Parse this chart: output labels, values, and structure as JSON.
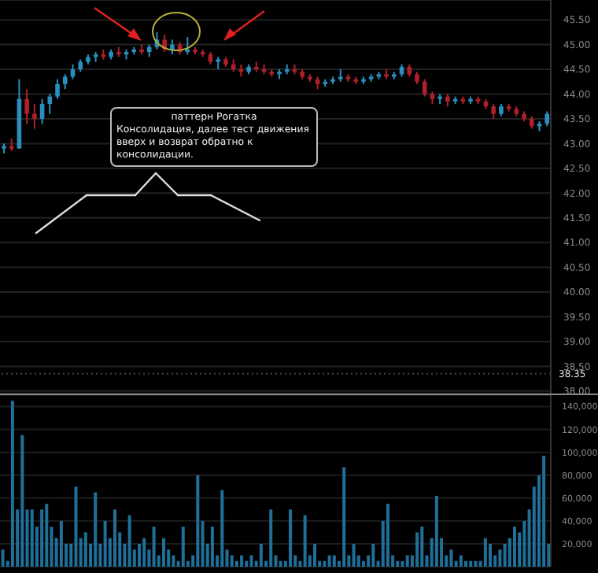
{
  "chart_data": [
    {
      "type": "candlestick",
      "categories": [
        null,
        null,
        null,
        null,
        null,
        null,
        null,
        null,
        null,
        null,
        null,
        null,
        null,
        null,
        null,
        null,
        null,
        null,
        null,
        null,
        null,
        null,
        null,
        null,
        null,
        null,
        null,
        null,
        null,
        null,
        null,
        null,
        null,
        null,
        null,
        null,
        null,
        null,
        null,
        null,
        null,
        null,
        null,
        null,
        null,
        null,
        null,
        null,
        null,
        null,
        null,
        null,
        null,
        null,
        null,
        null,
        null,
        null,
        null,
        null,
        null,
        null,
        null,
        null,
        null,
        null,
        null,
        null,
        null,
        null,
        null,
        null
      ],
      "ohlc": [
        [
          42.9,
          43.0,
          42.8,
          42.95
        ],
        [
          42.95,
          43.1,
          42.85,
          42.9
        ],
        [
          42.9,
          44.3,
          42.9,
          43.9
        ],
        [
          43.9,
          44.1,
          43.4,
          43.6
        ],
        [
          43.6,
          43.8,
          43.3,
          43.5
        ],
        [
          43.5,
          43.9,
          43.4,
          43.8
        ],
        [
          43.8,
          44.0,
          43.6,
          43.95
        ],
        [
          43.95,
          44.3,
          43.9,
          44.2
        ],
        [
          44.2,
          44.4,
          44.1,
          44.35
        ],
        [
          44.35,
          44.6,
          44.3,
          44.5
        ],
        [
          44.5,
          44.7,
          44.45,
          44.65
        ],
        [
          44.65,
          44.8,
          44.6,
          44.75
        ],
        [
          44.75,
          44.85,
          44.65,
          44.8
        ],
        [
          44.8,
          44.9,
          44.7,
          44.75
        ],
        [
          44.75,
          44.9,
          44.7,
          44.85
        ],
        [
          44.85,
          44.95,
          44.75,
          44.8
        ],
        [
          44.8,
          44.9,
          44.7,
          44.85
        ],
        [
          44.85,
          44.95,
          44.8,
          44.9
        ],
        [
          44.9,
          45.0,
          44.8,
          44.85
        ],
        [
          44.85,
          45.0,
          44.75,
          44.95
        ],
        [
          44.95,
          45.25,
          44.9,
          45.1
        ],
        [
          45.1,
          45.2,
          44.85,
          44.9
        ],
        [
          44.9,
          45.1,
          44.8,
          45.0
        ],
        [
          45.0,
          45.05,
          44.8,
          44.85
        ],
        [
          44.85,
          45.15,
          44.8,
          44.9
        ],
        [
          44.9,
          44.95,
          44.8,
          44.85
        ],
        [
          44.85,
          44.9,
          44.75,
          44.8
        ],
        [
          44.8,
          44.85,
          44.6,
          44.65
        ],
        [
          44.65,
          44.75,
          44.5,
          44.7
        ],
        [
          44.7,
          44.75,
          44.55,
          44.6
        ],
        [
          44.6,
          44.7,
          44.45,
          44.5
        ],
        [
          44.5,
          44.6,
          44.35,
          44.45
        ],
        [
          44.45,
          44.6,
          44.4,
          44.55
        ],
        [
          44.55,
          44.65,
          44.45,
          44.5
        ],
        [
          44.5,
          44.6,
          44.4,
          44.45
        ],
        [
          44.45,
          44.5,
          44.35,
          44.4
        ],
        [
          44.4,
          44.5,
          44.3,
          44.45
        ],
        [
          44.45,
          44.6,
          44.4,
          44.5
        ],
        [
          44.5,
          44.6,
          44.4,
          44.45
        ],
        [
          44.45,
          44.5,
          44.3,
          44.35
        ],
        [
          44.35,
          44.4,
          44.25,
          44.3
        ],
        [
          44.3,
          44.35,
          44.1,
          44.2
        ],
        [
          44.2,
          44.3,
          44.15,
          44.25
        ],
        [
          44.25,
          44.35,
          44.2,
          44.3
        ],
        [
          44.3,
          44.5,
          44.25,
          44.35
        ],
        [
          44.35,
          44.4,
          44.25,
          44.3
        ],
        [
          44.3,
          44.35,
          44.2,
          44.25
        ],
        [
          44.25,
          44.35,
          44.2,
          44.3
        ],
        [
          44.3,
          44.4,
          44.25,
          44.35
        ],
        [
          44.35,
          44.45,
          44.3,
          44.4
        ],
        [
          44.4,
          44.5,
          44.3,
          44.35
        ],
        [
          44.35,
          44.45,
          44.3,
          44.4
        ],
        [
          44.4,
          44.6,
          44.35,
          44.55
        ],
        [
          44.55,
          44.6,
          44.35,
          44.4
        ],
        [
          44.4,
          44.45,
          44.2,
          44.25
        ],
        [
          44.25,
          44.3,
          43.95,
          44.0
        ],
        [
          44.0,
          44.05,
          43.8,
          43.9
        ],
        [
          43.9,
          44.0,
          43.8,
          43.95
        ],
        [
          43.95,
          44.0,
          43.75,
          43.85
        ],
        [
          43.85,
          43.95,
          43.8,
          43.9
        ],
        [
          43.9,
          43.95,
          43.8,
          43.85
        ],
        [
          43.85,
          43.95,
          43.8,
          43.9
        ],
        [
          43.9,
          43.95,
          43.8,
          43.85
        ],
        [
          43.85,
          43.9,
          43.7,
          43.75
        ],
        [
          43.75,
          43.8,
          43.5,
          43.6
        ],
        [
          43.6,
          43.8,
          43.55,
          43.75
        ],
        [
          43.75,
          43.8,
          43.65,
          43.7
        ],
        [
          43.7,
          43.75,
          43.55,
          43.6
        ],
        [
          43.6,
          43.65,
          43.45,
          43.5
        ],
        [
          43.5,
          43.55,
          43.3,
          43.35
        ],
        [
          43.35,
          43.45,
          43.25,
          43.4
        ],
        [
          43.4,
          43.65,
          43.35,
          43.6
        ]
      ],
      "colors": [
        "#2a8fbf",
        "#b0202a",
        "#2a8fbf",
        "#b0202a",
        "#b0202a",
        "#2a8fbf",
        "#2a8fbf",
        "#2a8fbf",
        "#2a8fbf",
        "#2a8fbf",
        "#2a8fbf",
        "#2a8fbf",
        "#2a8fbf",
        "#b0202a",
        "#2a8fbf",
        "#b0202a",
        "#2a8fbf",
        "#2a8fbf",
        "#b0202a",
        "#2a8fbf",
        "#2a8fbf",
        "#b0202a",
        "#2a8fbf",
        "#b0202a",
        "#2a8fbf",
        "#b0202a",
        "#b0202a",
        "#b0202a",
        "#2a8fbf",
        "#b0202a",
        "#b0202a",
        "#b0202a",
        "#2a8fbf",
        "#b0202a",
        "#b0202a",
        "#b0202a",
        "#2a8fbf",
        "#2a8fbf",
        "#b0202a",
        "#b0202a",
        "#b0202a",
        "#b0202a",
        "#2a8fbf",
        "#2a8fbf",
        "#2a8fbf",
        "#b0202a",
        "#b0202a",
        "#2a8fbf",
        "#2a8fbf",
        "#2a8fbf",
        "#b0202a",
        "#2a8fbf",
        "#2a8fbf",
        "#b0202a",
        "#b0202a",
        "#b0202a",
        "#b0202a",
        "#2a8fbf",
        "#b0202a",
        "#2a8fbf",
        "#b0202a",
        "#2a8fbf",
        "#b0202a",
        "#b0202a",
        "#b0202a",
        "#2a8fbf",
        "#b0202a",
        "#b0202a",
        "#b0202a",
        "#b0202a",
        "#2a8fbf",
        "#2a8fbf"
      ],
      "ylim": [
        37.95,
        45.9
      ],
      "yticks": [
        {
          "value": 38,
          "label": "38.00"
        },
        {
          "value": 38.5,
          "label": "38.50"
        },
        {
          "value": 39,
          "label": "39.00"
        },
        {
          "value": 39.5,
          "label": "39.50"
        },
        {
          "value": 40,
          "label": "40.00"
        },
        {
          "value": 40.5,
          "label": "40.50"
        },
        {
          "value": 41,
          "label": "41.00"
        },
        {
          "value": 41.5,
          "label": "41.50"
        },
        {
          "value": 42,
          "label": "42.00"
        },
        {
          "value": 42.5,
          "label": "42.50"
        },
        {
          "value": 43,
          "label": "43.00"
        },
        {
          "value": 43.5,
          "label": "43.50"
        },
        {
          "value": 44,
          "label": "44.00"
        },
        {
          "value": 44.5,
          "label": "44.50"
        },
        {
          "value": 45,
          "label": "45.00"
        },
        {
          "value": 45.5,
          "label": "45.50"
        }
      ],
      "ref_lines": [
        {
          "axis": "y",
          "value": 38.35,
          "label": "38.35"
        }
      ],
      "annotations": [
        "паттерн Рогатка",
        "Консолидация, далее тест движения вверх и возврат обратно к консолидации."
      ],
      "grid": "y",
      "tick_labels": "y"
    },
    {
      "type": "bar",
      "categories": [
        null,
        null,
        null,
        null,
        null,
        null,
        null,
        null,
        null,
        null,
        null,
        null,
        null,
        null,
        null,
        null,
        null,
        null,
        null,
        null,
        null,
        null,
        null,
        null,
        null,
        null,
        null,
        null,
        null,
        null,
        null,
        null,
        null,
        null,
        null,
        null,
        null,
        null,
        null,
        null,
        null,
        null,
        null,
        null,
        null,
        null,
        null,
        null,
        null,
        null,
        null,
        null,
        null,
        null,
        null,
        null,
        null,
        null,
        null,
        null,
        null,
        null,
        null,
        null,
        null,
        null,
        null,
        null,
        null,
        null,
        null,
        null,
        null,
        null,
        null,
        null,
        null,
        null,
        null,
        null,
        null,
        null,
        null,
        null,
        null,
        null,
        null,
        null,
        null,
        null,
        null,
        null,
        null,
        null,
        null,
        null,
        null,
        null,
        null,
        null,
        null,
        null,
        null,
        null,
        null,
        null,
        null,
        null,
        null,
        null,
        null,
        null,
        null
      ],
      "values": [
        15000,
        5000,
        145000,
        50000,
        115000,
        50000,
        50000,
        35000,
        50000,
        55000,
        35000,
        25000,
        40000,
        20000,
        20000,
        70000,
        25000,
        30000,
        20000,
        65000,
        20000,
        40000,
        25000,
        50000,
        30000,
        20000,
        45000,
        15000,
        20000,
        25000,
        15000,
        35000,
        10000,
        25000,
        15000,
        10000,
        5000,
        35000,
        5000,
        10000,
        80000,
        40000,
        20000,
        35000,
        10000,
        67000,
        15000,
        10000,
        5000,
        10000,
        5000,
        10000,
        5000,
        20000,
        5000,
        50000,
        10000,
        5000,
        5000,
        50000,
        10000,
        5000,
        45000,
        10000,
        20000,
        5000,
        5000,
        10000,
        10000,
        5000,
        87000,
        10000,
        20000,
        10000,
        5000,
        10000,
        20000,
        5000,
        40000,
        55000,
        10000,
        5000,
        5000,
        10000,
        10000,
        30000,
        35000,
        10000,
        25000,
        62000,
        25000,
        10000,
        15000,
        5000,
        10000,
        5000,
        5000,
        5000,
        5000,
        25000,
        20000,
        10000,
        15000,
        20000,
        25000,
        35000,
        30000,
        40000,
        50000,
        70000,
        80000,
        97000,
        20000
      ],
      "color": "#1f6f99",
      "ylim": [
        0,
        150000
      ],
      "yticks": [
        {
          "value": 20000,
          "label": "20,000"
        },
        {
          "value": 40000,
          "label": "40,000"
        },
        {
          "value": 60000,
          "label": "60,000"
        },
        {
          "value": 80000,
          "label": "80,000"
        },
        {
          "value": 100000,
          "label": "100,000"
        },
        {
          "value": 120000,
          "label": "120,000"
        },
        {
          "value": 140000,
          "label": "140,000"
        }
      ],
      "grid": "y",
      "tick_labels": "y"
    }
  ]
}
